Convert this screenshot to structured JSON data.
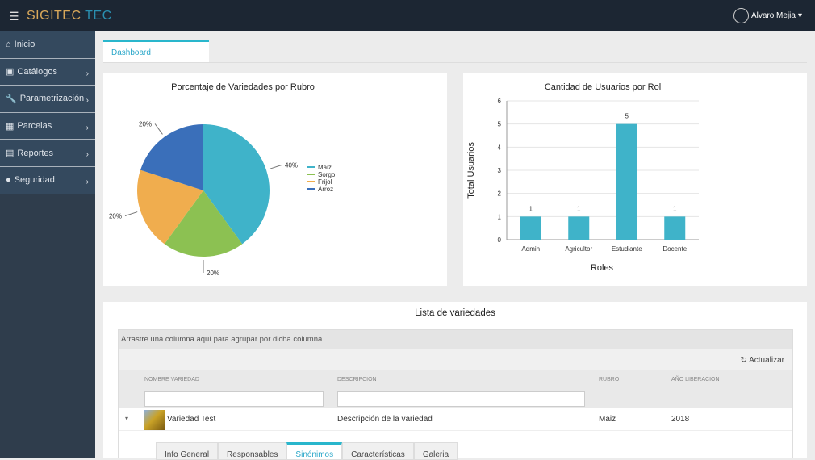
{
  "header": {
    "menu_icon": "hamburger-icon",
    "logo_part1": "SIGITEC",
    "logo_part2": "TEC",
    "user": "Alvaro Mejia"
  },
  "sidebar": {
    "items": [
      {
        "label": "Inicio",
        "icon": "home-icon"
      },
      {
        "label": "Catálogos",
        "icon": "archive-icon"
      },
      {
        "label": "Parametrización",
        "icon": "wrench-icon"
      },
      {
        "label": "Parcelas",
        "icon": "grid-icon"
      },
      {
        "label": "Reportes",
        "icon": "book-icon"
      },
      {
        "label": "Seguridad",
        "icon": "user-icon"
      }
    ]
  },
  "tabs": {
    "dashboard": "Dashboard"
  },
  "colors": {
    "accent": "#29b6cc",
    "header": "#1c2633",
    "sidebar": "#34495e"
  },
  "chart_data": [
    {
      "type": "pie",
      "title": "Porcentaje de Variedades por Rubro",
      "categories": [
        "Maiz",
        "Sorgo",
        "Frijol",
        "Arroz"
      ],
      "values": [
        40,
        20,
        20,
        20
      ],
      "labels": [
        "40%",
        "20%",
        "20%",
        "20%"
      ],
      "colors": [
        "#3fb3c9",
        "#8cc152",
        "#f0ad4e",
        "#3a6fba"
      ],
      "legend": "right"
    },
    {
      "type": "bar",
      "title": "Cantidad de Usuarios por Rol",
      "xlabel": "Roles",
      "ylabel": "Total Usuarios",
      "categories": [
        "Admin",
        "Agricultor",
        "Estudiante",
        "Docente"
      ],
      "values": [
        1,
        1,
        5,
        1
      ],
      "ylim": [
        0,
        6
      ],
      "yticks": [
        "0",
        "1",
        "2",
        "3",
        "4",
        "5",
        "6"
      ],
      "color": "#3fb3c9",
      "grid": true
    }
  ],
  "list": {
    "title": "Lista de variedades",
    "group_hint": "Arrastre una columna aquí para agrupar por dicha columna",
    "refresh": "Actualizar",
    "columns": [
      "NOMBRE VARIEDAD",
      "DESCRIPCION",
      "RUBRO",
      "AÑO LIBERACION"
    ],
    "rows": [
      {
        "nombre": "Variedad Test",
        "descripcion": "Descripción de la variedad",
        "rubro": "Maiz",
        "anio": "2018"
      }
    ],
    "detail_tabs": [
      "Info General",
      "Responsables",
      "Sinónimos",
      "Características",
      "Galeria"
    ],
    "active_tab": "Sinónimos"
  }
}
